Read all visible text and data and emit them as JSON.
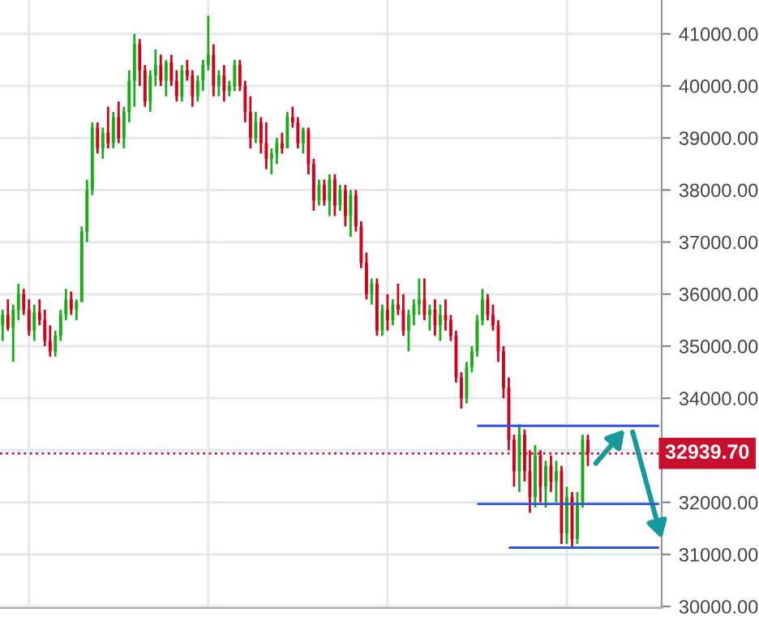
{
  "chart_data": {
    "type": "candlestick",
    "categories": [
      null,
      null,
      null,
      null,
      null,
      null,
      null,
      null,
      null,
      null,
      null,
      null,
      null,
      null,
      null,
      null,
      null,
      null,
      null,
      null,
      null,
      null,
      null,
      null,
      null,
      null,
      null,
      null,
      null,
      null,
      null,
      null,
      null,
      null,
      null,
      null,
      null,
      null,
      null,
      null,
      null,
      null,
      null,
      null,
      null,
      null,
      null,
      null,
      null,
      null,
      null,
      null,
      null,
      null,
      null,
      null,
      null,
      null,
      null,
      null,
      null,
      null,
      null,
      null,
      null,
      null,
      null,
      null,
      null,
      null,
      null,
      null,
      null,
      null,
      null,
      null,
      null,
      null,
      null,
      null,
      null,
      null,
      null,
      null,
      null,
      null,
      null,
      null,
      null,
      null,
      null,
      null,
      null,
      null,
      null,
      null,
      null,
      null,
      null,
      null,
      null,
      null,
      null,
      null,
      null,
      null,
      null,
      null,
      null,
      null,
      null,
      null
    ],
    "ohlc": [
      [
        35400,
        35700,
        35100,
        35600
      ],
      [
        35600,
        35900,
        35300,
        35350
      ],
      [
        35350,
        35800,
        34700,
        35700
      ],
      [
        35700,
        36200,
        35500,
        36000
      ],
      [
        36000,
        36100,
        35600,
        35700
      ],
      [
        35700,
        35900,
        35200,
        35300
      ],
      [
        35300,
        35800,
        35100,
        35650
      ],
      [
        35650,
        35900,
        35400,
        35500
      ],
      [
        35500,
        35700,
        35000,
        35100
      ],
      [
        35100,
        35400,
        34800,
        34900
      ],
      [
        34900,
        35300,
        34800,
        35200
      ],
      [
        35200,
        35700,
        35100,
        35600
      ],
      [
        35600,
        36100,
        35500,
        35900
      ],
      [
        35900,
        36050,
        35600,
        35700
      ],
      [
        35700,
        35900,
        35500,
        35850
      ],
      [
        35850,
        37300,
        35850,
        37200
      ],
      [
        37200,
        38200,
        37000,
        38000
      ],
      [
        38000,
        39300,
        37900,
        39200
      ],
      [
        39200,
        39300,
        38700,
        38800
      ],
      [
        38800,
        39200,
        38600,
        39100
      ],
      [
        39100,
        39600,
        38800,
        38900
      ],
      [
        38900,
        39500,
        38800,
        39400
      ],
      [
        39400,
        39700,
        38900,
        39000
      ],
      [
        39000,
        39600,
        38800,
        39500
      ],
      [
        39500,
        40300,
        39300,
        40100
      ],
      [
        40100,
        41000,
        39600,
        40800
      ],
      [
        40800,
        40900,
        40000,
        40300
      ],
      [
        40300,
        40400,
        39600,
        39700
      ],
      [
        39700,
        40300,
        39500,
        40200
      ],
      [
        40200,
        40700,
        40000,
        40400
      ],
      [
        40400,
        40600,
        40000,
        40100
      ],
      [
        40100,
        40500,
        39800,
        40450
      ],
      [
        40450,
        40600,
        40000,
        40100
      ],
      [
        40100,
        40300,
        39700,
        39800
      ],
      [
        39800,
        40400,
        39700,
        40300
      ],
      [
        40300,
        40500,
        40100,
        40200
      ],
      [
        40200,
        40300,
        39600,
        39800
      ],
      [
        39800,
        40200,
        39700,
        40100
      ],
      [
        40100,
        40500,
        39900,
        40400
      ],
      [
        40400,
        41350,
        40300,
        40600
      ],
      [
        40600,
        40800,
        39800,
        40000
      ],
      [
        40000,
        40300,
        39800,
        40200
      ],
      [
        40200,
        40400,
        39700,
        39900
      ],
      [
        39900,
        40100,
        39800,
        40000
      ],
      [
        40000,
        40500,
        39900,
        40400
      ],
      [
        40400,
        40500,
        39900,
        40000
      ],
      [
        40000,
        40100,
        39300,
        39500
      ],
      [
        39500,
        39800,
        38800,
        39000
      ],
      [
        39000,
        39500,
        38900,
        39300
      ],
      [
        39300,
        39400,
        38700,
        38900
      ],
      [
        38900,
        39300,
        38400,
        38600
      ],
      [
        38600,
        38800,
        38300,
        38700
      ],
      [
        38700,
        39000,
        38500,
        38900
      ],
      [
        38900,
        39100,
        38700,
        38800
      ],
      [
        38800,
        39500,
        38800,
        39400
      ],
      [
        39400,
        39600,
        39200,
        39300
      ],
      [
        39300,
        39400,
        38800,
        38900
      ],
      [
        38900,
        39200,
        38700,
        39150
      ],
      [
        39150,
        39200,
        38300,
        38500
      ],
      [
        38500,
        38600,
        37600,
        37800
      ],
      [
        37800,
        38200,
        37700,
        38100
      ],
      [
        38100,
        38200,
        37700,
        37800
      ],
      [
        37800,
        38300,
        37500,
        38200
      ],
      [
        38200,
        38300,
        37500,
        37700
      ],
      [
        37700,
        38100,
        37600,
        38000
      ],
      [
        38000,
        38100,
        37300,
        37500
      ],
      [
        37500,
        38000,
        37100,
        37900
      ],
      [
        37900,
        38000,
        37200,
        37300
      ],
      [
        37300,
        37400,
        36500,
        36600
      ],
      [
        36600,
        36800,
        35900,
        36000
      ],
      [
        36000,
        36300,
        35800,
        36200
      ],
      [
        36200,
        36300,
        35200,
        35300
      ],
      [
        35300,
        35800,
        35200,
        35700
      ],
      [
        35700,
        36000,
        35300,
        35500
      ],
      [
        35500,
        35900,
        35400,
        35800
      ],
      [
        35800,
        36200,
        35600,
        35700
      ],
      [
        35700,
        36000,
        35200,
        35300
      ],
      [
        35300,
        35700,
        34900,
        35600
      ],
      [
        35600,
        35900,
        35400,
        35800
      ],
      [
        35800,
        36300,
        35600,
        35900
      ],
      [
        35900,
        36300,
        35500,
        35600
      ],
      [
        35600,
        35800,
        35300,
        35700
      ],
      [
        35700,
        35900,
        35200,
        35400
      ],
      [
        35400,
        35800,
        35100,
        35600
      ],
      [
        35600,
        35900,
        35300,
        35500
      ],
      [
        35500,
        35600,
        35100,
        35200
      ],
      [
        35200,
        35300,
        34300,
        34400
      ],
      [
        34400,
        34500,
        33800,
        34000
      ],
      [
        34000,
        34700,
        33900,
        34600
      ],
      [
        34600,
        35000,
        34500,
        34900
      ],
      [
        34900,
        35600,
        34800,
        35500
      ],
      [
        35500,
        36100,
        35400,
        35900
      ],
      [
        35900,
        36000,
        35500,
        35600
      ],
      [
        35600,
        35800,
        35300,
        35400
      ],
      [
        35400,
        35500,
        34700,
        34900
      ],
      [
        34900,
        35000,
        34000,
        34200
      ],
      [
        34200,
        34400,
        33000,
        33200
      ],
      [
        33200,
        33300,
        32300,
        32600
      ],
      [
        32600,
        33500,
        32200,
        33300
      ],
      [
        33300,
        33400,
        32400,
        32600
      ],
      [
        32600,
        33000,
        31800,
        32100
      ],
      [
        32100,
        33100,
        31900,
        32900
      ],
      [
        32900,
        33000,
        32000,
        32300
      ],
      [
        32300,
        32800,
        31900,
        32700
      ],
      [
        32700,
        32900,
        32200,
        32400
      ],
      [
        32400,
        32800,
        32000,
        32600
      ],
      [
        32600,
        32700,
        31200,
        31400
      ],
      [
        31400,
        32300,
        31200,
        32100
      ],
      [
        32100,
        32200,
        31150,
        31300
      ],
      [
        31300,
        32200,
        31200,
        32000
      ],
      [
        32000,
        33300,
        31900,
        33200
      ],
      [
        33200,
        33300,
        32700,
        32939.7
      ]
    ],
    "ylim": [
      29970,
      41650
    ],
    "yticks": [
      {
        "value": 30000,
        "label": "30000.00"
      },
      {
        "value": 31000,
        "label": "31000.00"
      },
      {
        "value": 32000,
        "label": "32000.00"
      },
      {
        "value": 33000,
        "label": null
      },
      {
        "value": 34000,
        "label": "34000.00"
      },
      {
        "value": 35000,
        "label": "35000.00"
      },
      {
        "value": 36000,
        "label": "36000.00"
      },
      {
        "value": 37000,
        "label": "37000.00"
      },
      {
        "value": 38000,
        "label": "38000.00"
      },
      {
        "value": 39000,
        "label": "39000.00"
      },
      {
        "value": 40000,
        "label": "40000.00"
      },
      {
        "value": 41000,
        "label": "41000.00"
      }
    ],
    "ref_lines": [
      {
        "axis": "y",
        "value": 32939.7,
        "label": "32939.70",
        "color": "#c8102e",
        "line_style": "dotted"
      },
      {
        "axis": "y",
        "value": 33470,
        "color": "#2f56d6",
        "line_style": "solid"
      },
      {
        "axis": "y",
        "value": 31970,
        "color": "#2f56d6",
        "line_style": "solid"
      },
      {
        "axis": "y",
        "value": 31130,
        "color": "#2f56d6",
        "line_style": "solid"
      }
    ],
    "grid": true,
    "tick_labels": "y"
  }
}
